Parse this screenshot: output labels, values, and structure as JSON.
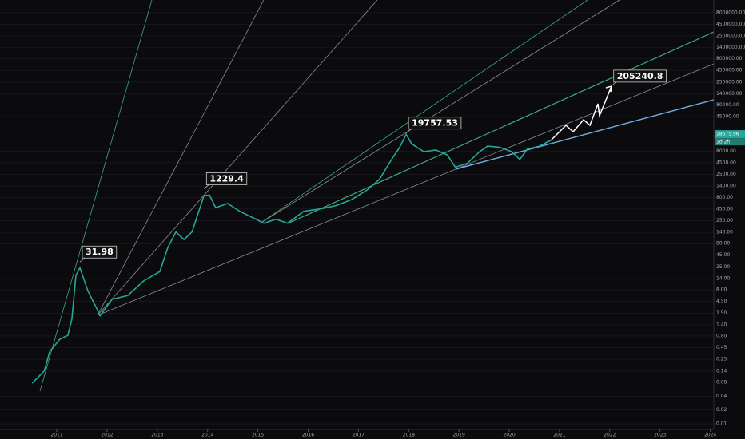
{
  "chart_data": {
    "type": "line",
    "log_scale": true,
    "grid": true,
    "x": [
      2010.51,
      2010.75,
      2010.86,
      2011.06,
      2011.22,
      2011.3,
      2011.38,
      2011.46,
      2011.62,
      2011.78,
      2011.86,
      2012.1,
      2012.41,
      2012.73,
      2013.05,
      2013.21,
      2013.37,
      2013.53,
      2013.69,
      2013.93,
      2014.04,
      2014.16,
      2014.4,
      2014.64,
      2014.96,
      2015.12,
      2015.36,
      2015.59,
      2015.91,
      2016.23,
      2016.55,
      2016.87,
      2017.18,
      2017.42,
      2017.66,
      2017.82,
      2017.95,
      2018.06,
      2018.3,
      2018.54,
      2018.77,
      2018.93,
      2019.17,
      2019.41,
      2019.57,
      2019.81,
      2020.05,
      2020.21,
      2020.36,
      2020.6,
      2020.84
    ],
    "series": [
      {
        "color": "#26a69a",
        "values": [
          0.076,
          0.14,
          0.37,
          0.68,
          0.83,
          1.85,
          16.5,
          24,
          7.5,
          3.4,
          2.2,
          5.0,
          6,
          12.5,
          20,
          66,
          143,
          98,
          143,
          890,
          890,
          480,
          590,
          400,
          270,
          220,
          270,
          220,
          400,
          450,
          530,
          720,
          1170,
          1970,
          5300,
          9700,
          18500,
          11500,
          7800,
          8500,
          6600,
          3600,
          4400,
          7800,
          10300,
          9700,
          7800,
          5300,
          8900,
          10300,
          14000
        ]
      }
    ],
    "annotations": [
      {
        "x": 2011.46,
        "value": 31.98
      },
      {
        "x": 2013.93,
        "value": 1229.4
      },
      {
        "x": 2017.95,
        "value": 19757.53
      },
      {
        "x": 2022.03,
        "value": 205240.8
      }
    ],
    "last_price": {
      "value": 18675.96,
      "label": "18675.96"
    },
    "countdown": "1d 2h",
    "xlim": [
      2009.87,
      2024.07
    ],
    "xticks": [
      2011,
      2012,
      2013,
      2014,
      2015,
      2016,
      2017,
      2018,
      2019,
      2020,
      2021,
      2022,
      2023,
      2024
    ],
    "ylim": [
      0.0076,
      15000000
    ],
    "yticks": [
      {
        "value": 0.01,
        "label": "0.01"
      },
      {
        "value": 0.02,
        "label": "0.02"
      },
      {
        "value": 0.04,
        "label": "0.04"
      },
      {
        "value": 0.08,
        "label": "0.08"
      },
      {
        "value": 0.14,
        "label": "0.14"
      },
      {
        "value": 0.25,
        "label": "0.25"
      },
      {
        "value": 0.45,
        "label": "0.45"
      },
      {
        "value": 0.8,
        "label": "0.80"
      },
      {
        "value": 1.4,
        "label": "1.40"
      },
      {
        "value": 2.5,
        "label": "2.50"
      },
      {
        "value": 4.5,
        "label": "4.50"
      },
      {
        "value": 8,
        "label": "8.00"
      },
      {
        "value": 14,
        "label": "14.00"
      },
      {
        "value": 25,
        "label": "25.00"
      },
      {
        "value": 45,
        "label": "45.00"
      },
      {
        "value": 80,
        "label": "80.00"
      },
      {
        "value": 140,
        "label": "140.00"
      },
      {
        "value": 250,
        "label": "250.00"
      },
      {
        "value": 450,
        "label": "450.00"
      },
      {
        "value": 800,
        "label": "800.00"
      },
      {
        "value": 1400,
        "label": "1400.00"
      },
      {
        "value": 2500,
        "label": "2500.00"
      },
      {
        "value": 4500,
        "label": "4500.00"
      },
      {
        "value": 8000,
        "label": "8000.00"
      },
      {
        "value": 45000,
        "label": "45000.00"
      },
      {
        "value": 80000,
        "label": "80000.00"
      },
      {
        "value": 140000,
        "label": "140000.00"
      },
      {
        "value": 250000,
        "label": "250000.00"
      },
      {
        "value": 450000,
        "label": "450000.00"
      },
      {
        "value": 800000,
        "label": "800000.00"
      },
      {
        "value": 1400000,
        "label": "1400000.00"
      },
      {
        "value": 2500000,
        "label": "2500000.00"
      },
      {
        "value": 4500000,
        "label": "4500000.00"
      },
      {
        "value": 8000000,
        "label": "8000000.00"
      }
    ]
  }
}
